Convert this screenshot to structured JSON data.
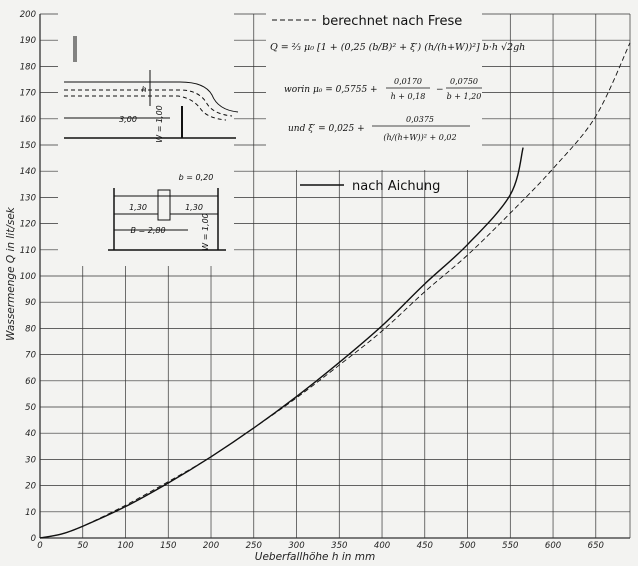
{
  "chart_data": {
    "type": "line",
    "xlabel": "Ueberfallhöhe h in mm",
    "ylabel": "Wassermenge Q in lit/sek",
    "xlim": [
      0,
      690
    ],
    "ylim": [
      0,
      200
    ],
    "x_ticks": [
      0,
      50,
      100,
      150,
      200,
      250,
      300,
      350,
      400,
      450,
      500,
      550,
      600,
      650
    ],
    "y_ticks": [
      0,
      10,
      20,
      30,
      40,
      50,
      60,
      70,
      80,
      90,
      100,
      110,
      120,
      130,
      140,
      150,
      160,
      170,
      180,
      190,
      200
    ],
    "grid": true,
    "legend_position": "top-right",
    "series": [
      {
        "name": "berechnet nach Frese",
        "style": "dashed",
        "x": [
          0,
          25,
          50,
          100,
          150,
          200,
          250,
          300,
          350,
          400,
          450,
          500,
          550,
          600,
          650,
          690
        ],
        "y": [
          0,
          1.5,
          4.5,
          12.5,
          21.5,
          31,
          42,
          53.5,
          66,
          79,
          94,
          108,
          124,
          141,
          161,
          189
        ]
      },
      {
        "name": "nach Aichung",
        "style": "solid",
        "x": [
          0,
          25,
          50,
          100,
          150,
          200,
          250,
          300,
          350,
          400,
          450,
          500,
          550,
          565
        ],
        "y": [
          0,
          1.5,
          4.5,
          12,
          21,
          31,
          42,
          54,
          67,
          81,
          97,
          112,
          131,
          149
        ]
      }
    ]
  },
  "legend": {
    "calc_label": "berechnet nach Frese",
    "measured_label": "nach Aichung"
  },
  "formulas": {
    "main": "Q = ⅔ μ₀ [1 + (0,25 (b/B)² + ξ′) (h/(h+W))²] b·h √2gh",
    "mu_prefix": "worin μ₀ = 0,5755 +",
    "mu_t1_num": "0,0170",
    "mu_t1_den": "h + 0,18",
    "mu_minus": "−",
    "mu_t2_num": "0,0750",
    "mu_t2_den": "b + 1,20",
    "xi_prefix": "und ξ′ = 0,025 +",
    "xi_num": "0,0375",
    "xi_den": "(h/(h+W))² + 0,02"
  },
  "sketch": {
    "dim_300": "3,00",
    "dim_w_side": "W = 1,00",
    "dim_h": "h",
    "dim_b": "b = 0,20",
    "dim_130_left": "1,30",
    "dim_130_right": "1,30",
    "dim_B": "B = 2,80",
    "dim_w_front": "W = 1,00"
  },
  "colors": {
    "background": "#f3f3f1",
    "grid": "#333333",
    "line": "#111111"
  }
}
